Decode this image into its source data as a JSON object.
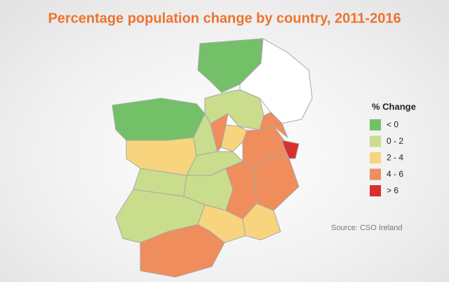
{
  "title": "Percentage population change by country, 2011-2016",
  "legend": {
    "title": "% Change",
    "items": [
      {
        "label": "< 0",
        "color": "#74c069"
      },
      {
        "label": "0 - 2",
        "color": "#c9dd8c"
      },
      {
        "label": "2 - 4",
        "color": "#f8d47f"
      },
      {
        "label": "4 - 6",
        "color": "#f08d5c"
      },
      {
        "label": "> 6",
        "color": "#d8302d"
      }
    ]
  },
  "source": "Source: CSO Ireland"
}
